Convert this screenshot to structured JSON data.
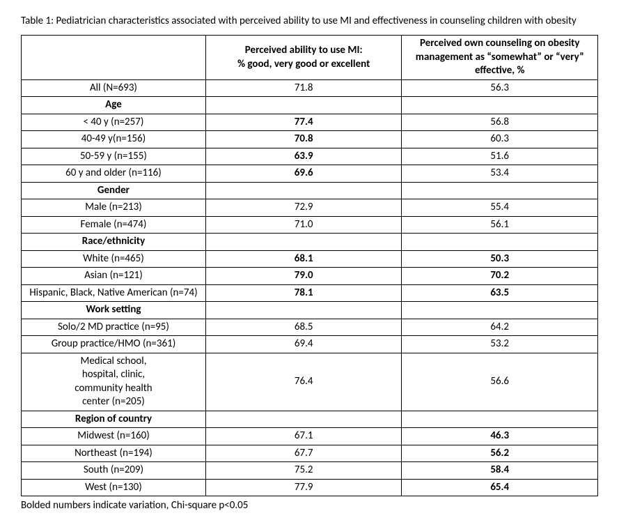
{
  "caption": "Table 1: Pediatrician characteristics associated with perceived ability to use MI and effectiveness in counseling children with obesity",
  "headers": {
    "col1": "",
    "col2": "Perceived ability to use MI:\n% good, very good or excellent",
    "col3": "Perceived own counseling on obesity management as “somewhat” or “very” effective, %"
  },
  "rows": [
    {
      "label": "All (N=693)",
      "v1": "71.8",
      "b1": false,
      "v2": "56.3",
      "b2": false,
      "section": false
    },
    {
      "label": "Age",
      "v1": "",
      "b1": false,
      "v2": "",
      "b2": false,
      "section": true
    },
    {
      "label": "< 40 y (n=257)",
      "v1": "77.4",
      "b1": true,
      "v2": "56.8",
      "b2": false,
      "section": false
    },
    {
      "label": "40-49 y(n=156)",
      "v1": "70.8",
      "b1": true,
      "v2": "60.3",
      "b2": false,
      "section": false
    },
    {
      "label": "50-59 y (n=155)",
      "v1": "63.9",
      "b1": true,
      "v2": "51.6",
      "b2": false,
      "section": false
    },
    {
      "label": "60 y and older (n=116)",
      "v1": "69.6",
      "b1": true,
      "v2": "53.4",
      "b2": false,
      "section": false
    },
    {
      "label": "Gender",
      "v1": "",
      "b1": false,
      "v2": "",
      "b2": false,
      "section": true
    },
    {
      "label": "Male (n=213)",
      "v1": "72.9",
      "b1": false,
      "v2": "55.4",
      "b2": false,
      "section": false
    },
    {
      "label": "Female (n=474)",
      "v1": "71.0",
      "b1": false,
      "v2": "56.1",
      "b2": false,
      "section": false
    },
    {
      "label": "Race/ethnicity",
      "v1": "",
      "b1": false,
      "v2": "",
      "b2": false,
      "section": true
    },
    {
      "label": "White (n=465)",
      "v1": "68.1",
      "b1": true,
      "v2": "50.3",
      "b2": true,
      "section": false
    },
    {
      "label": "Asian (n=121)",
      "v1": "79.0",
      "b1": true,
      "v2": "70.2",
      "b2": true,
      "section": false
    },
    {
      "label": "Hispanic, Black, Native American (n=74)",
      "v1": "78.1",
      "b1": true,
      "v2": "63.5",
      "b2": true,
      "section": false
    },
    {
      "label": "Work setting",
      "v1": "",
      "b1": false,
      "v2": "",
      "b2": false,
      "section": true
    },
    {
      "label": "Solo/2 MD practice (n=95)",
      "v1": "68.5",
      "b1": false,
      "v2": "64.2",
      "b2": false,
      "section": false
    },
    {
      "label": "Group practice/HMO (n=361)",
      "v1": "69.4",
      "b1": false,
      "v2": "53.2",
      "b2": false,
      "section": false
    },
    {
      "label": "Medical school,\nhospital, clinic,\ncommunity health\ncenter (n=205)",
      "v1": "76.4",
      "b1": false,
      "v2": "56.6",
      "b2": false,
      "section": false
    },
    {
      "label": "Region of country",
      "v1": "",
      "b1": false,
      "v2": "",
      "b2": false,
      "section": true
    },
    {
      "label": "Midwest (n=160)",
      "v1": "67.1",
      "b1": false,
      "v2": "46.3",
      "b2": true,
      "section": false
    },
    {
      "label": "Northeast (n=194)",
      "v1": "67.7",
      "b1": false,
      "v2": "56.2",
      "b2": true,
      "section": false
    },
    {
      "label": "South (n=209)",
      "v1": "75.2",
      "b1": false,
      "v2": "58.4",
      "b2": true,
      "section": false
    },
    {
      "label": "West (n=130)",
      "v1": "77.9",
      "b1": false,
      "v2": "65.4",
      "b2": true,
      "section": false
    }
  ],
  "footnote": "Bolded numbers indicate variation, Chi-square p<0.05",
  "style": {
    "font_family": "Calibri, Arial, sans-serif",
    "font_size_pt": 11,
    "text_color": "#000000",
    "background_color": "#ffffff",
    "border_color": "#000000"
  }
}
